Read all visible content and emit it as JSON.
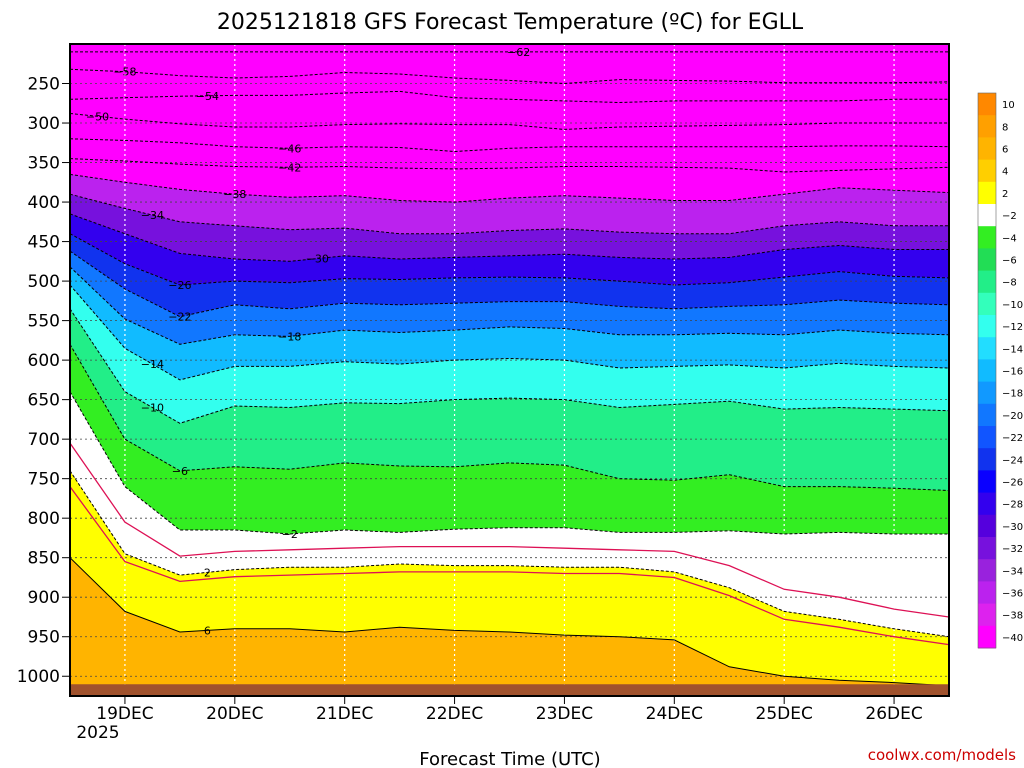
{
  "chart_data": {
    "type": "heatmap",
    "title": "2025121818 GFS Forecast Temperature (ºC) for EGLL",
    "xlabel": "Forecast Time (UTC)",
    "ylabel": "",
    "x_ticks": [
      "19DEC",
      "20DEC",
      "21DEC",
      "22DEC",
      "23DEC",
      "24DEC",
      "25DEC",
      "26DEC"
    ],
    "x_year": "2025",
    "xlim": [
      "2025-12-18T18:00",
      "2025-12-26T18:00"
    ],
    "y_ticks": [
      250,
      300,
      350,
      400,
      450,
      500,
      550,
      600,
      650,
      700,
      750,
      800,
      850,
      900,
      950,
      1000
    ],
    "ylim": [
      200,
      1025
    ],
    "credit": "coolwx.com/models",
    "grid": true,
    "colorbar": {
      "levels": [
        10,
        8,
        6,
        4,
        2,
        -2,
        -4,
        -6,
        -8,
        -10,
        -12,
        -14,
        -16,
        -18,
        -20,
        -22,
        -24,
        -26,
        -28,
        -30,
        -32,
        -34,
        -36,
        -38,
        -40
      ],
      "colors": [
        "#ff8800",
        "#ffa000",
        "#ffb400",
        "#ffcf00",
        "#ffff00",
        "#ffffff",
        "#33ee22",
        "#22dd55",
        "#22ee88",
        "#33ffbb",
        "#33ffee",
        "#22ddff",
        "#11bbff",
        "#1199ff",
        "#1177ff",
        "#1155ff",
        "#1133ee",
        "#0a00ff",
        "#3300ee",
        "#5500dd",
        "#7711dd",
        "#9922dd",
        "#bb22ee",
        "#dd22ee",
        "#ff00ff"
      ]
    },
    "contour_lines": [
      {
        "level": -62,
        "label_x": "2025-12-22T20:00",
        "values": [
          210,
          210,
          210,
          210,
          210,
          210,
          210,
          210,
          210,
          210,
          210,
          210,
          210,
          210,
          210,
          210,
          210
        ]
      },
      {
        "level": -58,
        "label_x": "2025-12-19T06:00",
        "values": [
          232,
          235,
          240,
          243,
          241,
          236,
          238,
          243,
          246,
          250,
          245,
          246,
          247,
          249,
          249,
          249,
          248
        ]
      },
      {
        "level": -54,
        "label_x": "2025-12-20T00:00",
        "values": [
          270,
          268,
          266,
          265,
          265,
          262,
          260,
          268,
          270,
          272,
          274,
          272,
          272,
          272,
          272,
          270,
          270
        ]
      },
      {
        "level": -50,
        "label_x": "2025-12-19T00:00",
        "values": [
          288,
          295,
          301,
          305,
          305,
          302,
          301,
          302,
          302,
          308,
          305,
          304,
          303,
          302,
          300,
          300,
          300
        ]
      },
      {
        "level": -46,
        "label_x": "2025-12-20T18:00",
        "values": [
          320,
          322,
          325,
          330,
          332,
          330,
          331,
          336,
          332,
          330,
          330,
          330,
          330,
          330,
          329,
          329,
          330
        ]
      },
      {
        "level": -42,
        "label_x": "2025-12-20T18:00",
        "values": [
          345,
          348,
          352,
          355,
          356,
          355,
          357,
          358,
          357,
          355,
          355,
          356,
          357,
          362,
          360,
          358,
          356
        ]
      },
      {
        "level": -38,
        "label_x": "2025-12-20T06:00",
        "values": [
          365,
          375,
          384,
          390,
          394,
          392,
          398,
          400,
          395,
          392,
          395,
          398,
          398,
          390,
          382,
          385,
          388
        ]
      },
      {
        "level": -34,
        "label_x": "2025-12-19T12:00",
        "values": [
          390,
          408,
          425,
          430,
          435,
          433,
          440,
          440,
          436,
          434,
          438,
          440,
          440,
          430,
          425,
          430,
          430
        ]
      },
      {
        "level": -30,
        "label_x": "2025-12-21T00:00",
        "values": [
          415,
          440,
          465,
          472,
          475,
          468,
          472,
          470,
          468,
          466,
          470,
          472,
          470,
          460,
          455,
          460,
          460
        ]
      },
      {
        "level": -26,
        "label_x": "2025-12-19T18:00",
        "values": [
          440,
          478,
          505,
          500,
          502,
          497,
          498,
          496,
          495,
          496,
          500,
          505,
          502,
          495,
          488,
          494,
          496
        ]
      },
      {
        "level": -22,
        "label_x": "2025-12-19T18:00",
        "values": [
          462,
          510,
          545,
          530,
          535,
          528,
          530,
          528,
          526,
          526,
          532,
          535,
          532,
          530,
          524,
          528,
          530
        ]
      },
      {
        "level": -18,
        "label_x": "2025-12-20T18:00",
        "values": [
          482,
          548,
          580,
          568,
          570,
          562,
          565,
          562,
          558,
          560,
          568,
          568,
          566,
          568,
          562,
          566,
          568
        ]
      },
      {
        "level": -14,
        "label_x": "2025-12-19T12:00",
        "values": [
          505,
          585,
          625,
          608,
          608,
          602,
          605,
          600,
          598,
          600,
          610,
          608,
          606,
          610,
          604,
          608,
          610
        ]
      },
      {
        "level": -10,
        "label_x": "2025-12-19T12:00",
        "values": [
          535,
          640,
          680,
          658,
          660,
          654,
          655,
          650,
          648,
          650,
          660,
          656,
          652,
          662,
          660,
          662,
          664
        ]
      },
      {
        "level": -6,
        "label_x": "2025-12-19T18:00",
        "values": [
          580,
          700,
          740,
          735,
          738,
          730,
          734,
          735,
          730,
          733,
          750,
          752,
          745,
          760,
          760,
          762,
          765
        ]
      },
      {
        "level": -2,
        "label_x": "2025-12-20T18:00",
        "values": [
          640,
          760,
          815,
          815,
          820,
          815,
          818,
          814,
          812,
          812,
          818,
          818,
          816,
          820,
          818,
          820,
          820
        ]
      },
      {
        "level": 2,
        "label_x": "2025-12-20T00:00",
        "values": [
          740,
          845,
          872,
          865,
          862,
          862,
          858,
          860,
          860,
          862,
          862,
          868,
          888,
          918,
          928,
          940,
          950
        ]
      },
      {
        "level": 6,
        "label_x": "2025-12-20T00:00",
        "values": [
          850,
          918,
          944,
          940,
          940,
          944,
          938,
          942,
          944,
          948,
          950,
          954,
          988,
          1000,
          1005,
          1008,
          1012
        ]
      }
    ],
    "zero_lines": [
      {
        "level": 0,
        "values": [
          760,
          855,
          880,
          874,
          872,
          870,
          868,
          868,
          868,
          870,
          870,
          875,
          898,
          928,
          938,
          950,
          960
        ]
      },
      {
        "level": -1,
        "values": [
          705,
          805,
          848,
          842,
          840,
          838,
          836,
          836,
          836,
          838,
          840,
          842,
          860,
          890,
          900,
          915,
          925
        ]
      }
    ],
    "times": [
      "2025-12-18T18:00",
      "2025-12-19T06:00",
      "2025-12-19T18:00",
      "2025-12-20T06:00",
      "2025-12-20T18:00",
      "2025-12-21T06:00",
      "2025-12-21T18:00",
      "2025-12-22T06:00",
      "2025-12-22T18:00",
      "2025-12-23T06:00",
      "2025-12-23T18:00",
      "2025-12-24T06:00",
      "2025-12-24T18:00",
      "2025-12-25T06:00",
      "2025-12-25T18:00",
      "2025-12-26T06:00",
      "2025-12-26T18:00"
    ]
  }
}
